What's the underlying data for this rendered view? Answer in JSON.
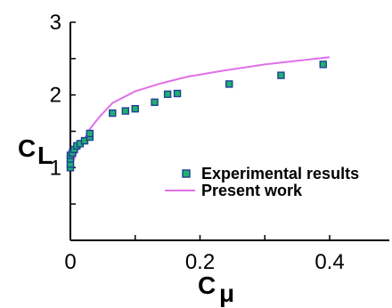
{
  "chart_data": {
    "type": "scatter",
    "title": "",
    "xlabel": "C",
    "xlabel_sub": "μ",
    "ylabel": "C",
    "ylabel_sub": "L",
    "xlim": [
      0,
      0.4
    ],
    "ylim": [
      0,
      3
    ],
    "x_ticks": [
      "0",
      "0.2",
      "0.4"
    ],
    "y_ticks": [
      "1",
      "2",
      "3"
    ],
    "grid": false,
    "legend_position": "right",
    "series": [
      {
        "name": "Experimental results",
        "kind": "scatter",
        "marker_color": "#20b070",
        "marker_edge": "#1f3f96",
        "x": [
          0.0,
          0.0,
          0.0,
          0.0,
          0.003,
          0.006,
          0.01,
          0.015,
          0.022,
          0.03,
          0.03,
          0.065,
          0.085,
          0.1,
          0.13,
          0.15,
          0.165,
          0.245,
          0.325,
          0.39
        ],
        "y": [
          1.0,
          1.05,
          1.12,
          1.17,
          1.2,
          1.25,
          1.3,
          1.33,
          1.37,
          1.42,
          1.47,
          1.75,
          1.78,
          1.81,
          1.9,
          2.01,
          2.02,
          2.15,
          2.27,
          2.42
        ]
      },
      {
        "name": "Present work",
        "kind": "line",
        "color": "#e070e8",
        "x": [
          0.0,
          0.005,
          0.01,
          0.02,
          0.03,
          0.045,
          0.065,
          0.1,
          0.14,
          0.18,
          0.24,
          0.3,
          0.35,
          0.4
        ],
        "y": [
          1.0,
          1.1,
          1.22,
          1.37,
          1.53,
          1.7,
          1.89,
          2.05,
          2.16,
          2.25,
          2.34,
          2.42,
          2.47,
          2.52
        ]
      }
    ]
  }
}
